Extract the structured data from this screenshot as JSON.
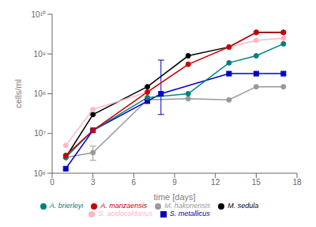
{
  "chart_data": {
    "type": "line",
    "xlabel": "time [days]",
    "ylabel": "cells/ml",
    "log": "y",
    "xlim": [
      0,
      18
    ],
    "xticks": [
      0,
      3,
      6,
      9,
      12,
      15,
      18
    ],
    "ylim": [
      1000000,
      10000000000
    ],
    "yticks": [
      {
        "value": 1000000,
        "label": "10⁶"
      },
      {
        "value": 10000000,
        "label": "10⁷"
      },
      {
        "value": 100000000,
        "label": "10⁸"
      },
      {
        "value": 1000000000,
        "label": "10⁹"
      },
      {
        "value": 10000000000,
        "label": "10¹⁰"
      }
    ],
    "grid": false,
    "legend": "bottom",
    "series": [
      {
        "name": "M. sedula",
        "color": "#000000",
        "marker": "circle",
        "x": [
          1,
          3,
          7,
          10,
          13,
          15,
          17
        ],
        "values": [
          2500000,
          30000000,
          150000000,
          900000000,
          1500000000,
          3500000000,
          3500000000
        ],
        "yerr_lo": [
          null,
          null,
          null,
          null,
          null,
          null,
          null
        ],
        "yerr_hi": [
          null,
          null,
          null,
          null,
          null,
          null,
          null
        ]
      },
      {
        "name": "M. hakonensis",
        "color": "#999999",
        "marker": "circle",
        "x": [
          1,
          3,
          7,
          10,
          13,
          15,
          17
        ],
        "values": [
          2500000,
          3300000,
          70000000,
          75000000,
          70000000,
          150000000,
          150000000
        ],
        "yerr_lo": [
          null,
          1200000,
          null,
          null,
          null,
          null,
          null
        ],
        "yerr_hi": [
          null,
          1500000,
          null,
          null,
          null,
          null,
          null
        ]
      },
      {
        "name": "S. metallicus",
        "color": "#0000CC",
        "marker": "square",
        "x": [
          1,
          3,
          7,
          8,
          13,
          15,
          17
        ],
        "values": [
          1300000,
          12000000,
          65000000,
          100000000,
          320000000,
          320000000,
          320000000
        ],
        "yerr_lo": [
          null,
          null,
          null,
          70000000,
          null,
          null,
          null
        ],
        "yerr_hi": [
          null,
          null,
          null,
          600000000,
          null,
          null,
          null
        ]
      },
      {
        "name": "A. brierleyi",
        "color": "#008080",
        "marker": "circle",
        "x": [
          1,
          3,
          7,
          10,
          13,
          15,
          17
        ],
        "values": [
          2500000,
          12000000,
          80000000,
          100000000,
          600000000,
          900000000,
          1800000000
        ],
        "yerr_lo": [
          null,
          null,
          null,
          null,
          null,
          null,
          null
        ],
        "yerr_hi": [
          null,
          null,
          null,
          null,
          null,
          null,
          null
        ]
      },
      {
        "name": "S. acidocaldarius",
        "color": "#FFB6C1",
        "marker": "circle",
        "x": [
          1,
          3,
          7,
          10,
          13,
          15,
          17
        ],
        "values": [
          5000000,
          40000000,
          110000000,
          550000000,
          1500000000,
          2200000000,
          2500000000
        ],
        "yerr_lo": [
          null,
          null,
          null,
          null,
          null,
          null,
          null
        ],
        "yerr_hi": [
          null,
          null,
          null,
          null,
          null,
          null,
          null
        ]
      },
      {
        "name": "A. manzaensis",
        "color": "#CC0000",
        "marker": "circle",
        "x": [
          1,
          3,
          7,
          10,
          13,
          15,
          17
        ],
        "values": [
          2800000,
          12000000,
          110000000,
          550000000,
          1500000000,
          3500000000,
          3500000000
        ],
        "yerr_lo": [
          null,
          null,
          null,
          null,
          null,
          null,
          null
        ],
        "yerr_hi": [
          null,
          null,
          null,
          null,
          null,
          null,
          null
        ]
      }
    ]
  }
}
